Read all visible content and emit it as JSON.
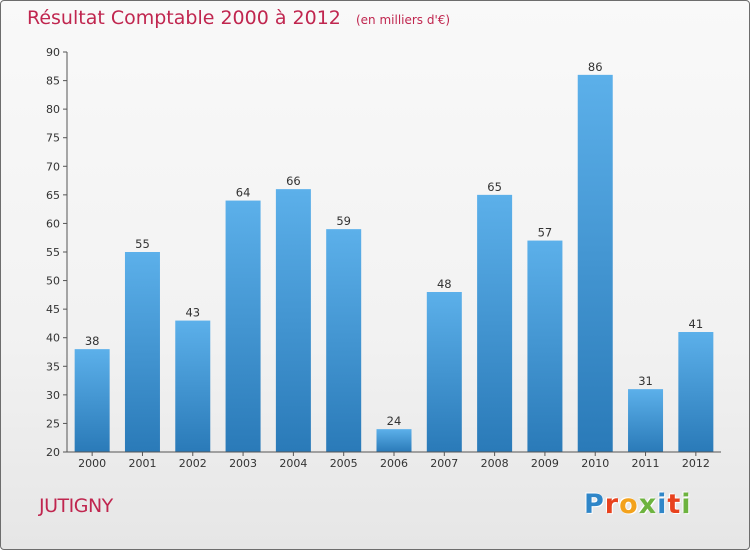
{
  "title": "Résultat Comptable 2000 à 2012",
  "unit_note": "(en milliers d'€)",
  "commune": "JUTIGNY",
  "logo": {
    "text": "Proxiti",
    "letters": [
      {
        "char": "P",
        "color": "#2f86c8"
      },
      {
        "char": "r",
        "color": "#e8421e"
      },
      {
        "char": "o",
        "color": "#f3a21c"
      },
      {
        "char": "x",
        "color": "#6db33f"
      },
      {
        "char": "i",
        "color": "#2f86c8"
      },
      {
        "char": "t",
        "color": "#e8421e"
      },
      {
        "char": "i",
        "color": "#6db33f"
      }
    ]
  },
  "colors": {
    "bar_top": "#5cb0ea",
    "bar_bottom": "#2a7ab8",
    "title": "#c0264f"
  },
  "chart_data": {
    "type": "bar",
    "title": "Résultat Comptable 2000 à 2012",
    "ylabel": "en milliers d'€",
    "xlabel": "",
    "categories": [
      "2000",
      "2001",
      "2002",
      "2003",
      "2004",
      "2005",
      "2006",
      "2007",
      "2008",
      "2009",
      "2010",
      "2011",
      "2012"
    ],
    "values": [
      38,
      55,
      43,
      64,
      66,
      59,
      24,
      48,
      65,
      57,
      86,
      31,
      41
    ],
    "ylim": [
      20,
      90
    ],
    "yticks": [
      20,
      25,
      30,
      35,
      40,
      45,
      50,
      55,
      60,
      65,
      70,
      75,
      80,
      85,
      90
    ],
    "grid": false
  }
}
